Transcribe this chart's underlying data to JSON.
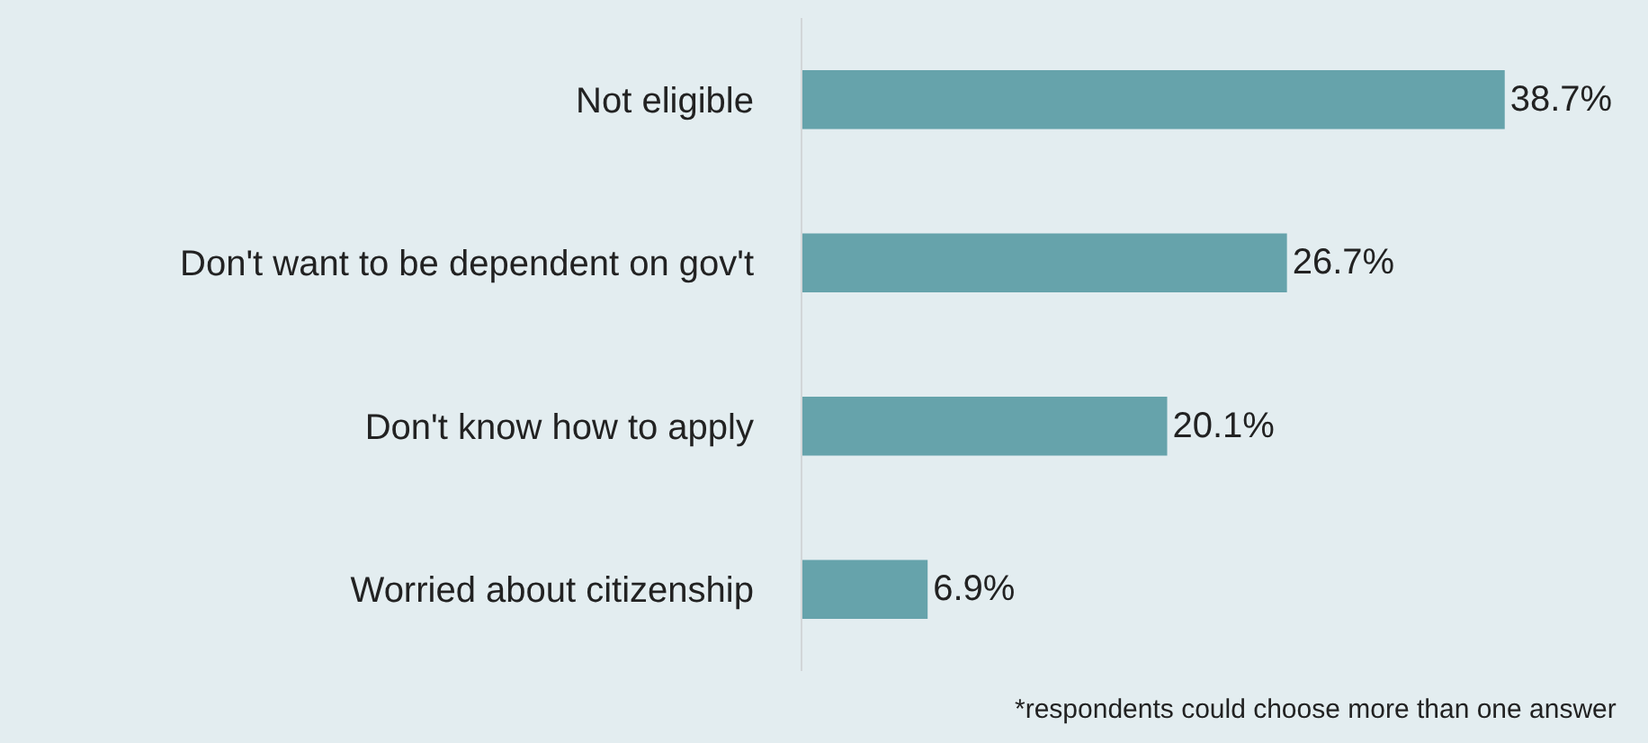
{
  "chart_data": {
    "type": "bar",
    "orientation": "horizontal",
    "categories": [
      "Not eligible",
      "Don't want to be dependent on gov't",
      "Don't know how to apply",
      "Worried about citizenship"
    ],
    "values": [
      38.7,
      26.7,
      20.1,
      6.9
    ],
    "value_labels": [
      "38.7%",
      "26.7%",
      "20.1%",
      "6.9%"
    ],
    "color": "#66a3ab",
    "annotations": [
      "*respondents could choose more than one answer"
    ]
  }
}
